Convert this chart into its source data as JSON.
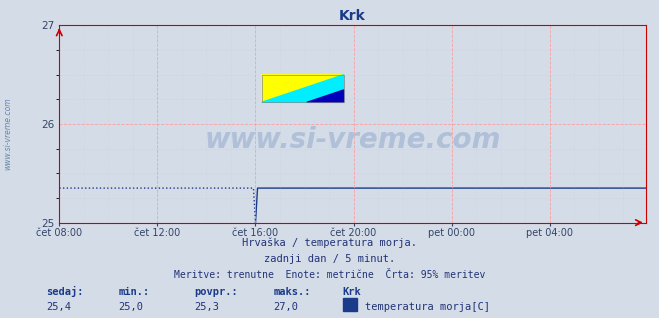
{
  "title": "Krk",
  "bg_color": "#d4dce8",
  "plot_bg_color": "#d4dce8",
  "line_color": "#1a3a8a",
  "grid_color_major": "#ff9999",
  "grid_color_minor": "#cccccc",
  "axis_color": "#cc0000",
  "ylabel_text": "www.si-vreme.com",
  "x_tick_labels": [
    "čet 08:00",
    "čet 12:00",
    "čet 16:00",
    "čet 20:00",
    "pet 00:00",
    "pet 04:00"
  ],
  "x_tick_positions": [
    0,
    48,
    96,
    144,
    192,
    240
  ],
  "y_min": 25.0,
  "y_max": 27.0,
  "y_ticks": [
    25,
    26,
    27
  ],
  "total_points": 288,
  "step_change_index": 96,
  "value_before": 25.35,
  "value_after": 25.35,
  "subtitle1": "Hrvaška / temperatura morja.",
  "subtitle2": "zadnji dan / 5 minut.",
  "subtitle3": "Meritve: trenutne  Enote: metrične  Črta: 95% meritev",
  "footer_labels": [
    "sedaj:",
    "min.:",
    "povpr.:",
    "maks.:",
    "Krk"
  ],
  "footer_values": [
    "25,4",
    "25,0",
    "25,3",
    "27,0"
  ],
  "legend_label": "temperatura morja[C]",
  "legend_color": "#1a3a8a",
  "watermark": "www.si-vreme.com",
  "watermark_color": "#b0c0d8",
  "logo_yellow": "#ffff00",
  "logo_cyan": "#00eeff",
  "logo_blue": "#0000bb"
}
